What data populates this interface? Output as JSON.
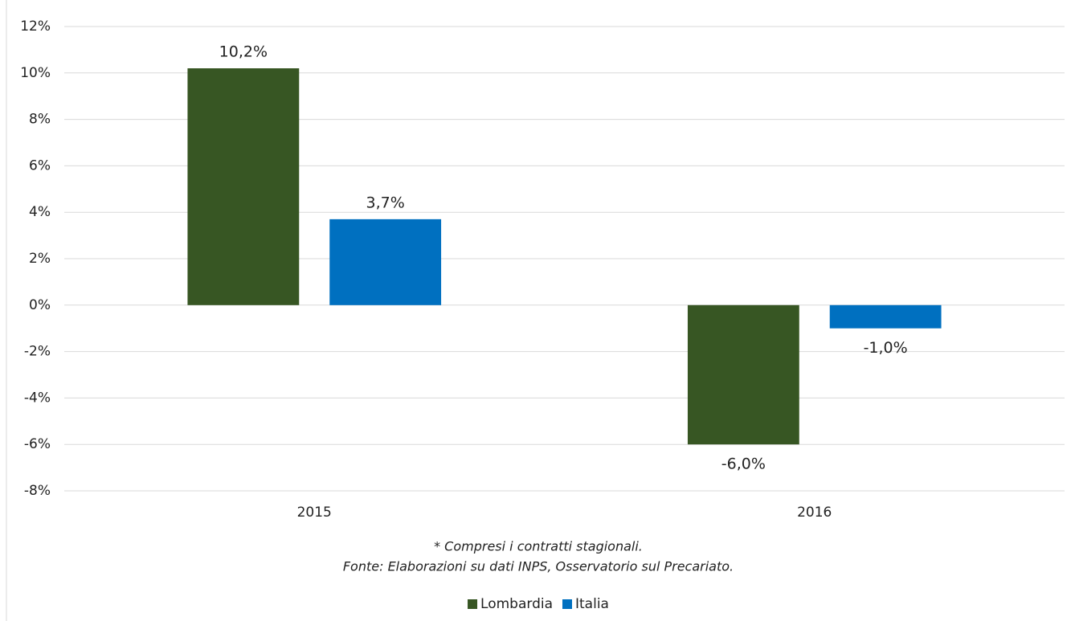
{
  "chart_data": {
    "type": "bar",
    "categories": [
      "2015",
      "2016"
    ],
    "series": [
      {
        "name": "Lombardia",
        "color": "#375623",
        "values": [
          10.2,
          -6.0
        ],
        "value_labels": [
          "10,2%",
          "-6,0%"
        ]
      },
      {
        "name": "Italia",
        "color": "#0070c0",
        "values": [
          3.7,
          -1.0
        ],
        "value_labels": [
          "3,7%",
          "-1,0%"
        ]
      }
    ],
    "ylim": [
      -8,
      12
    ],
    "yticks": [
      {
        "value": -8,
        "label": "-8%"
      },
      {
        "value": -6,
        "label": "-6%"
      },
      {
        "value": -4,
        "label": "-4%"
      },
      {
        "value": -2,
        "label": "-2%"
      },
      {
        "value": 0,
        "label": "0%"
      },
      {
        "value": 2,
        "label": "2%"
      },
      {
        "value": 4,
        "label": "4%"
      },
      {
        "value": 6,
        "label": "6%"
      },
      {
        "value": 8,
        "label": "8%"
      },
      {
        "value": 10,
        "label": "10%"
      },
      {
        "value": 12,
        "label": "12%"
      }
    ],
    "grid": true,
    "legend": "bottom",
    "annotations": [
      "* Compresi i contratti stagionali.",
      "Fonte: Elaborazioni su dati INPS, Osservatorio sul Precariato."
    ]
  }
}
